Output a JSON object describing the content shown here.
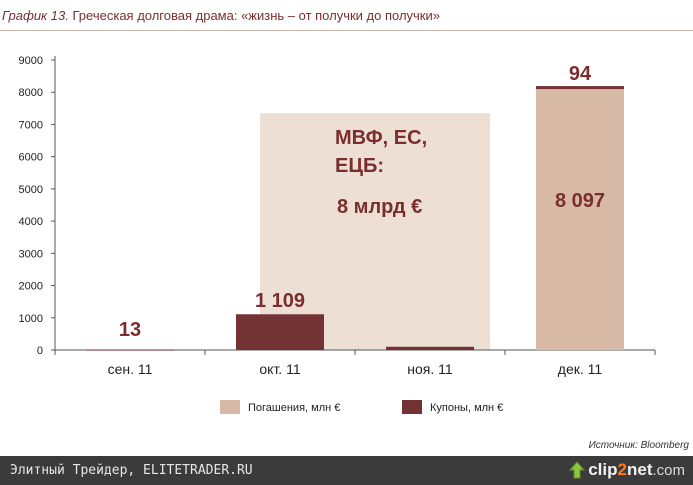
{
  "header": {
    "label": "График 13.",
    "title": "Греческая долговая драма: «жизнь – от получки до получки»"
  },
  "source": "Источник: Bloomberg",
  "footer": {
    "left_text": "Элитный Трейдер, ELITETRADER.RU",
    "brand_main": "clip",
    "brand_two": "2",
    "brand_net": "net",
    "brand_com": ".com",
    "icon": "up-arrow-icon"
  },
  "colors": {
    "repayments": "#d7b9a6",
    "coupons": "#733335",
    "overlay": "#eedfd5",
    "label_text": "#7a2e2e"
  },
  "chart_data": {
    "type": "bar",
    "stacked": true,
    "categories": [
      "сен. 11",
      "окт. 11",
      "ноя. 11",
      "дек. 11"
    ],
    "series": [
      {
        "name": "Погашения, млн €",
        "values": [
          0,
          0,
          0,
          8097
        ]
      },
      {
        "name": "Купоны, млн €",
        "values": [
          13,
          1109,
          100,
          94
        ]
      }
    ],
    "data_labels": [
      "13",
      "1 109",
      "",
      "94",
      "8 097"
    ],
    "annotation": {
      "line1": "МВФ, ЕС,",
      "line2": "ЕЦБ:",
      "line3": "8 млрд €",
      "value": 7350
    },
    "yticks": [
      0,
      1000,
      2000,
      3000,
      4000,
      5000,
      6000,
      7000,
      8000,
      9000
    ],
    "ylim": [
      0,
      9000
    ],
    "grid": false,
    "legend": "bottom"
  }
}
